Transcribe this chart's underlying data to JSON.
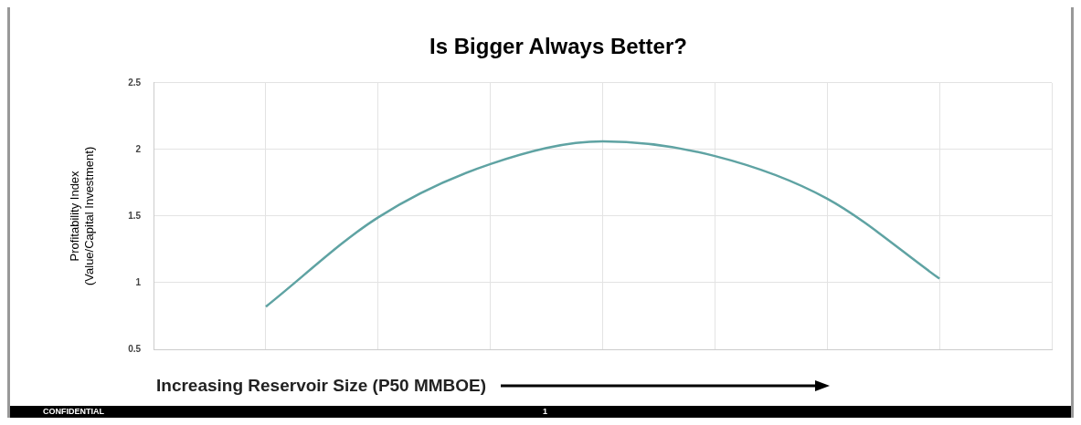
{
  "chart_data": {
    "type": "line",
    "title": "Is Bigger Always Better?",
    "xlabel": "Increasing Reservoir Size (P50 MMBOE)",
    "ylabel": "Profitability Index\n(Value/Capital Investment)",
    "categories": [
      null,
      null,
      null,
      null,
      null,
      null,
      null,
      null,
      null
    ],
    "series": [
      {
        "color": "#5fa3a3",
        "values": [
          null,
          0.82,
          1.49,
          1.89,
          2.06,
          1.95,
          1.63,
          1.03,
          null
        ]
      }
    ],
    "ylim": [
      0.5,
      2.5
    ],
    "yticks": [
      {
        "value": 0.5,
        "label": "0.5"
      },
      {
        "value": 1,
        "label": "1"
      },
      {
        "value": 1.5,
        "label": "1.5"
      },
      {
        "value": 2,
        "label": "2"
      },
      {
        "value": 2.5,
        "label": "2.5"
      }
    ],
    "grid": true,
    "legend": false,
    "marker": "none",
    "line_style": "solid",
    "annotations": [
      "CONFIDENTIAL",
      "1"
    ]
  }
}
